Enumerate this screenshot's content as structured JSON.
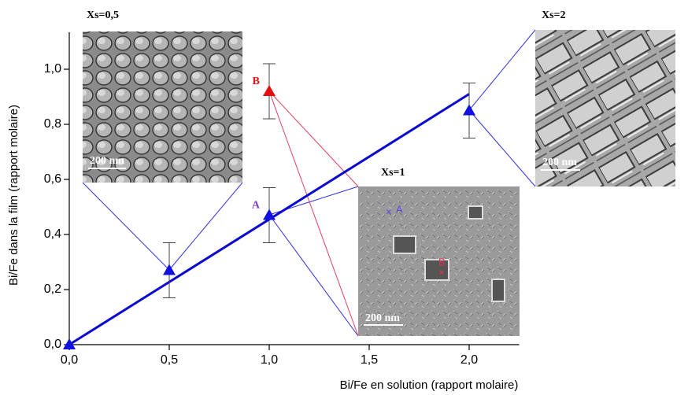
{
  "chart_data": {
    "type": "scatter",
    "x_label": "Bi/Fe en solution (rapport molaire)",
    "y_label": "Bi/Fe dans la film (rapport molaire)",
    "xlim": [
      0,
      2.25
    ],
    "ylim": [
      0,
      1.1
    ],
    "xticks": [
      {
        "value": 0,
        "label": "0,0"
      },
      {
        "value": 0.5,
        "label": "0,5"
      },
      {
        "value": 1,
        "label": "1,0"
      },
      {
        "value": 1.5,
        "label": "1,5"
      },
      {
        "value": 2,
        "label": "2,0"
      }
    ],
    "yticks": [
      {
        "value": 0,
        "label": "0,0"
      },
      {
        "value": 0.2,
        "label": "0,2"
      },
      {
        "value": 0.4,
        "label": "0,4"
      },
      {
        "value": 0.6,
        "label": "0,6"
      },
      {
        "value": 0.8,
        "label": "0,8"
      },
      {
        "value": 1,
        "label": "1,0"
      }
    ],
    "series": [
      {
        "color": "#1010e0",
        "x": [
          0,
          0.5,
          1,
          2
        ],
        "values": [
          0,
          0.27,
          0.47,
          0.85
        ],
        "errors": [
          null,
          0.1,
          0.1,
          0.1
        ],
        "point_labels": [
          null,
          null,
          "A",
          null
        ],
        "label_color": "#7b3fd0"
      },
      {
        "color": "#e01010",
        "x": [
          1
        ],
        "values": [
          0.92
        ],
        "errors": [
          0.1
        ],
        "point_labels": [
          "B"
        ],
        "label_color": "#e01010"
      }
    ],
    "fit_line": {
      "x": [
        0,
        2
      ],
      "values": [
        0,
        0.91
      ],
      "color": "#0a0ad0"
    },
    "insets": [
      {
        "title": "Xs=0,5",
        "scale_bar": "200 nm"
      },
      {
        "title": "Xs=1",
        "scale_bar": "200 nm",
        "markers": [
          "A",
          "B"
        ]
      },
      {
        "title": "Xs=2",
        "scale_bar": "200 nm"
      }
    ]
  }
}
